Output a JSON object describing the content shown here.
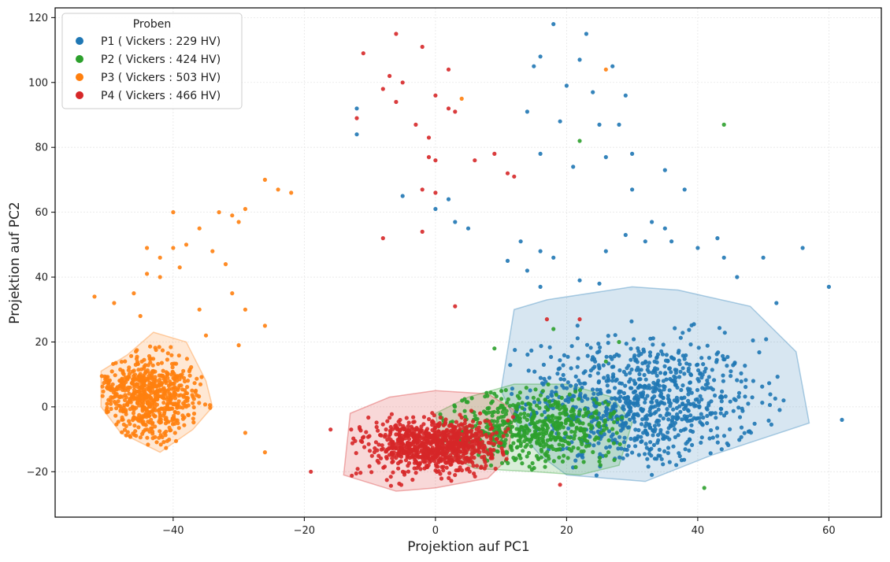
{
  "chart_data": {
    "type": "scatter",
    "xlabel": "Projektion auf PC1",
    "ylabel": "Projektion auf PC2",
    "xlim": [
      -58,
      68
    ],
    "ylim": [
      -34,
      123
    ],
    "xticks": [
      -40,
      -20,
      0,
      20,
      40,
      60
    ],
    "yticks": [
      -20,
      0,
      20,
      40,
      60,
      80,
      100,
      120
    ],
    "grid": true,
    "legend": {
      "title": "Proben",
      "placement": "top-left"
    },
    "series": [
      {
        "name": "P1 ( Vickers : 229 HV)",
        "color": "#1f77b4",
        "cluster_center": [
          31,
          1
        ],
        "cluster_spread": [
          9,
          10
        ],
        "count": 900,
        "hull": [
          [
            12,
            30
          ],
          [
            17,
            33
          ],
          [
            30,
            37
          ],
          [
            37,
            36
          ],
          [
            48,
            31
          ],
          [
            55,
            17
          ],
          [
            57,
            -5
          ],
          [
            42,
            -15
          ],
          [
            32,
            -23
          ],
          [
            20,
            -21
          ],
          [
            16,
            -15
          ],
          [
            13,
            -8
          ],
          [
            10,
            5
          ]
        ],
        "outliers": [
          [
            18,
            118
          ],
          [
            23,
            115
          ],
          [
            16,
            108
          ],
          [
            22,
            107
          ],
          [
            20,
            99
          ],
          [
            27,
            105
          ],
          [
            24,
            97
          ],
          [
            15,
            105
          ],
          [
            14,
            91
          ],
          [
            29,
            96
          ],
          [
            19,
            88
          ],
          [
            25,
            87
          ],
          [
            28,
            87
          ],
          [
            21,
            74
          ],
          [
            26,
            77
          ],
          [
            30,
            78
          ],
          [
            35,
            73
          ],
          [
            38,
            67
          ],
          [
            30,
            67
          ],
          [
            16,
            78
          ],
          [
            -5,
            65
          ],
          [
            0,
            61
          ],
          [
            2,
            64
          ],
          [
            3,
            57
          ],
          [
            5,
            55
          ],
          [
            -12,
            92
          ],
          [
            -12,
            84
          ],
          [
            13,
            51
          ],
          [
            16,
            48
          ],
          [
            18,
            46
          ],
          [
            26,
            48
          ],
          [
            29,
            53
          ],
          [
            32,
            51
          ],
          [
            33,
            57
          ],
          [
            35,
            55
          ],
          [
            36,
            51
          ],
          [
            40,
            49
          ],
          [
            43,
            52
          ],
          [
            46,
            40
          ],
          [
            50,
            46
          ],
          [
            56,
            49
          ],
          [
            60,
            37
          ],
          [
            62,
            -4
          ],
          [
            52,
            32
          ],
          [
            44,
            46
          ],
          [
            22,
            39
          ],
          [
            25,
            38
          ],
          [
            11,
            45
          ],
          [
            14,
            42
          ],
          [
            16,
            37
          ]
        ]
      },
      {
        "name": "P2 ( Vickers : 424 HV)",
        "color": "#2ca02c",
        "cluster_center": [
          15,
          -6
        ],
        "cluster_spread": [
          7,
          6
        ],
        "count": 550,
        "hull": [
          [
            0,
            -2
          ],
          [
            5,
            3
          ],
          [
            12,
            7
          ],
          [
            20,
            7
          ],
          [
            27,
            3
          ],
          [
            30,
            -5
          ],
          [
            28,
            -18
          ],
          [
            22,
            -21
          ],
          [
            15,
            -20
          ],
          [
            6,
            -19
          ],
          [
            1,
            -14
          ]
        ],
        "outliers": [
          [
            44,
            87
          ],
          [
            22,
            82
          ],
          [
            41,
            -25
          ],
          [
            24,
            -3
          ],
          [
            26,
            14
          ],
          [
            28,
            20
          ],
          [
            18,
            24
          ],
          [
            9,
            18
          ]
        ]
      },
      {
        "name": "P3 ( Vickers : 503 HV)",
        "color": "#ff7f0e",
        "cluster_center": [
          -44,
          3
        ],
        "cluster_spread": [
          4,
          7
        ],
        "count": 650,
        "hull": [
          [
            -51,
            11
          ],
          [
            -47,
            16
          ],
          [
            -43,
            23
          ],
          [
            -38,
            20
          ],
          [
            -35,
            8
          ],
          [
            -34,
            0
          ],
          [
            -37,
            -7
          ],
          [
            -42,
            -14
          ],
          [
            -48,
            -8
          ],
          [
            -51,
            0
          ]
        ],
        "outliers": [
          [
            -40,
            60
          ],
          [
            -26,
            70
          ],
          [
            -24,
            67
          ],
          [
            -22,
            66
          ],
          [
            -29,
            61
          ],
          [
            -31,
            59
          ],
          [
            -30,
            57
          ],
          [
            -33,
            60
          ],
          [
            -36,
            55
          ],
          [
            -38,
            50
          ],
          [
            -40,
            49
          ],
          [
            -42,
            46
          ],
          [
            -44,
            49
          ],
          [
            -39,
            43
          ],
          [
            -32,
            44
          ],
          [
            -31,
            35
          ],
          [
            -29,
            30
          ],
          [
            -26,
            25
          ],
          [
            -30,
            19
          ],
          [
            -29,
            -8
          ],
          [
            -26,
            -14
          ],
          [
            -52,
            34
          ],
          [
            -49,
            32
          ],
          [
            -46,
            35
          ],
          [
            -44,
            41
          ],
          [
            -42,
            40
          ],
          [
            -45,
            28
          ],
          [
            -34,
            48
          ],
          [
            -36,
            30
          ],
          [
            -35,
            22
          ],
          [
            26,
            104
          ],
          [
            4,
            95
          ]
        ]
      },
      {
        "name": "P4 ( Vickers : 466 HV)",
        "color": "#d62728",
        "cluster_center": [
          0,
          -12
        ],
        "cluster_spread": [
          5,
          4
        ],
        "count": 900,
        "hull": [
          [
            -13,
            -2
          ],
          [
            -7,
            3
          ],
          [
            0,
            5
          ],
          [
            8,
            4
          ],
          [
            12,
            -1
          ],
          [
            11,
            -16
          ],
          [
            8,
            -22
          ],
          [
            0,
            -25
          ],
          [
            -6,
            -26
          ],
          [
            -14,
            -21
          ]
        ],
        "outliers": [
          [
            -6,
            115
          ],
          [
            -11,
            109
          ],
          [
            -2,
            111
          ],
          [
            2,
            104
          ],
          [
            -7,
            102
          ],
          [
            -5,
            100
          ],
          [
            -8,
            98
          ],
          [
            -6,
            94
          ],
          [
            -12,
            89
          ],
          [
            -3,
            87
          ],
          [
            0,
            96
          ],
          [
            2,
            92
          ],
          [
            3,
            91
          ],
          [
            -1,
            83
          ],
          [
            -1,
            77
          ],
          [
            0,
            76
          ],
          [
            -2,
            67
          ],
          [
            0,
            66
          ],
          [
            6,
            76
          ],
          [
            9,
            78
          ],
          [
            11,
            72
          ],
          [
            12,
            71
          ],
          [
            -2,
            54
          ],
          [
            -8,
            52
          ],
          [
            22,
            27
          ],
          [
            17,
            27
          ],
          [
            -19,
            -20
          ],
          [
            -16,
            -7
          ],
          [
            5,
            -19
          ],
          [
            3,
            31
          ],
          [
            19,
            -24
          ]
        ]
      }
    ]
  }
}
